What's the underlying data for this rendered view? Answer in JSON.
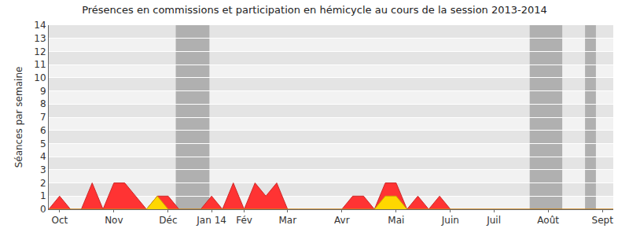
{
  "chart_data": {
    "type": "area",
    "title": "Présences en commissions et participation en hémicycle au cours de la session 2013-2014",
    "y_label": "Séances par semaine",
    "categories": [
      null,
      "Oct",
      null,
      null,
      null,
      null,
      "Nov",
      null,
      null,
      null,
      null,
      "Déc",
      null,
      null,
      null,
      "Jan 14",
      null,
      null,
      "Fév",
      null,
      null,
      null,
      "Mar",
      null,
      null,
      null,
      null,
      "Avr",
      null,
      null,
      null,
      null,
      "Mai",
      null,
      null,
      null,
      null,
      "Juin",
      null,
      null,
      null,
      "Juil",
      null,
      null,
      null,
      null,
      "Août",
      null,
      null,
      null,
      null,
      "Sept",
      null
    ],
    "series": [
      {
        "color": "#ff3333",
        "values": [
          0,
          1,
          0,
          0,
          2,
          0,
          2,
          2,
          1,
          0,
          1,
          1,
          0,
          0,
          0,
          1,
          0,
          2,
          0,
          2,
          1,
          2,
          0,
          0,
          0,
          0,
          0,
          0,
          1,
          1,
          0,
          2,
          2,
          0,
          1,
          0,
          1,
          0,
          0,
          0,
          0,
          0,
          0,
          0,
          0,
          0,
          0,
          0,
          0,
          0,
          0,
          0,
          0
        ]
      },
      {
        "color": "#ffd700",
        "values": [
          0,
          0,
          0,
          0,
          0,
          0,
          0,
          0,
          0,
          0,
          1,
          0,
          0,
          0,
          0,
          0,
          0,
          0,
          0,
          0,
          0,
          0,
          0,
          0,
          0,
          0,
          0,
          0,
          0,
          0,
          0,
          1,
          1,
          0,
          0,
          0,
          0,
          0,
          0,
          0,
          0,
          0,
          0,
          0,
          0,
          0,
          0,
          0,
          0,
          0,
          0,
          0,
          0
        ]
      }
    ],
    "shaded_ranges": [
      [
        11.7,
        14.8
      ],
      [
        44.3,
        47.3
      ],
      [
        49.4,
        50.4
      ]
    ],
    "ylim": [
      0,
      14
    ],
    "yticks": [
      0,
      1,
      2,
      3,
      4,
      5,
      6,
      7,
      8,
      9,
      10,
      11,
      12,
      13,
      14
    ],
    "grid": true
  }
}
